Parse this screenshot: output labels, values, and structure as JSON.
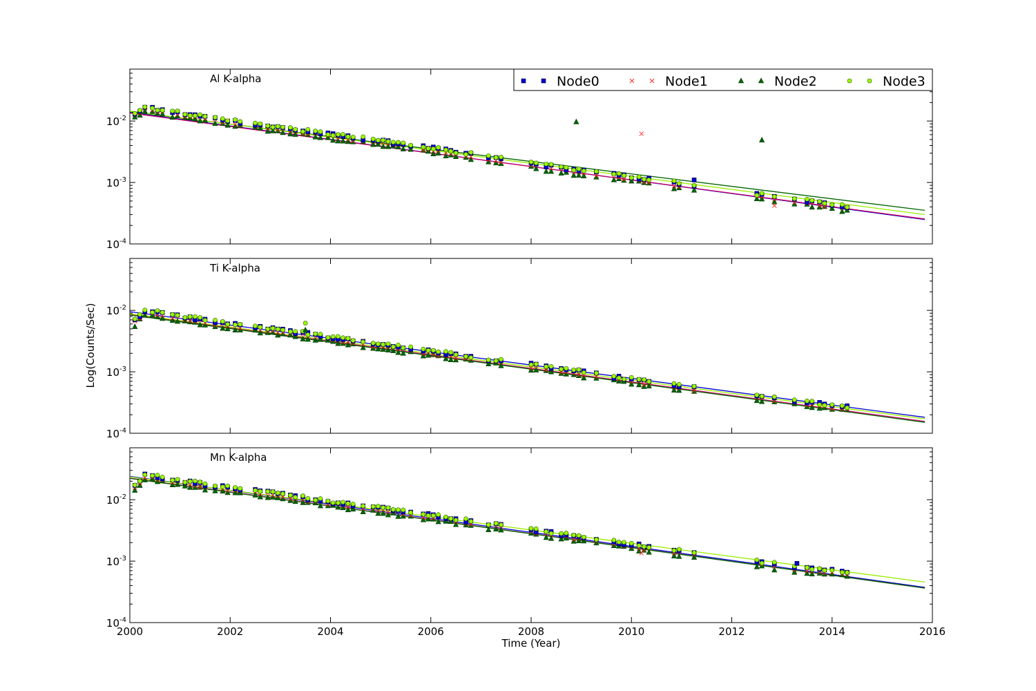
{
  "chart_data": {
    "type": "scatter",
    "xlabel": "Time (Year)",
    "ylabel": "Log(Counts/Sec)",
    "x_ticks": [
      2000,
      2002,
      2004,
      2006,
      2008,
      2010,
      2012,
      2014,
      2016
    ],
    "x_tick_labels": [
      "2000",
      "2002",
      "2004",
      "2006",
      "2008",
      "2010",
      "2012",
      "2014",
      "2016"
    ],
    "xlim": [
      2000,
      2016
    ],
    "y_scale": "log",
    "ylim": [
      0.0001,
      0.07
    ],
    "y_ticks": [
      0.0001,
      0.001,
      0.01
    ],
    "y_tick_base": "10",
    "y_tick_exponents": [
      "-4",
      "-3",
      "-2"
    ],
    "grid": false,
    "legend_placement": "top-right",
    "series": [
      {
        "name": "Node0",
        "marker": "square",
        "color": "#0000cc",
        "edge": "#000044",
        "fit_color": "#0000cc"
      },
      {
        "name": "Node1",
        "marker": "x",
        "color": "#ff2222",
        "edge": "#ff2222",
        "fit_color": "#cc0066"
      },
      {
        "name": "Node2",
        "marker": "triangle",
        "color": "#006600",
        "edge": "#003300",
        "fit_color": "#006600"
      },
      {
        "name": "Node3",
        "marker": "circle",
        "color": "#99ff00",
        "edge": "#335500",
        "fit_color": "#99ee00"
      }
    ],
    "panels": [
      {
        "title": "Al K-alpha",
        "fits": [
          {
            "y2000": 0.0138,
            "y2016": 0.00024
          },
          {
            "y2000": 0.0135,
            "y2016": 0.000245
          },
          {
            "y2000": 0.0142,
            "y2016": 0.00034
          },
          {
            "y2000": 0.0145,
            "y2016": 0.00029
          }
        ],
        "knots": [
          [
            2000.1,
            0.0125
          ],
          [
            2000.3,
            0.0155
          ],
          [
            2001,
            0.0125
          ],
          [
            2002,
            0.0095
          ],
          [
            2003,
            0.0073
          ],
          [
            2004,
            0.0056
          ],
          [
            2005,
            0.0044
          ],
          [
            2006,
            0.0034
          ],
          [
            2007,
            0.0025
          ],
          [
            2008,
            0.0019
          ],
          [
            2009,
            0.00145
          ],
          [
            2010,
            0.00115
          ],
          [
            2011,
            0.00088
          ],
          [
            2012,
            0.00068
          ],
          [
            2013,
            0.00052
          ],
          [
            2014.3,
            0.00038
          ]
        ],
        "outliers": [
          {
            "series": 2,
            "x": 2008.9,
            "y": 0.0097
          },
          {
            "series": 1,
            "x": 2010.2,
            "y": 0.0062
          },
          {
            "series": 2,
            "x": 2012.6,
            "y": 0.0049
          },
          {
            "series": 0,
            "x": 2011.25,
            "y": 0.0011
          },
          {
            "series": 1,
            "x": 2012.85,
            "y": 0.00042
          }
        ]
      },
      {
        "title": "Ti K-alpha",
        "fits": [
          {
            "y2000": 0.0095,
            "y2016": 0.000175
          },
          {
            "y2000": 0.0086,
            "y2016": 0.00015
          },
          {
            "y2000": 0.0084,
            "y2016": 0.000145
          },
          {
            "y2000": 0.0088,
            "y2016": 0.000165
          }
        ],
        "knots": [
          [
            2000.1,
            0.0063
          ],
          [
            2000.3,
            0.0092
          ],
          [
            2001,
            0.0075
          ],
          [
            2002,
            0.0056
          ],
          [
            2003,
            0.0045
          ],
          [
            2004,
            0.0034
          ],
          [
            2005,
            0.0026
          ],
          [
            2006,
            0.002
          ],
          [
            2007,
            0.00155
          ],
          [
            2008,
            0.00122
          ],
          [
            2009,
            0.00093
          ],
          [
            2010,
            0.0007
          ],
          [
            2011,
            0.00054
          ],
          [
            2012,
            0.00042
          ],
          [
            2013,
            0.00033
          ],
          [
            2014.3,
            0.00025
          ]
        ],
        "outliers": [
          {
            "series": 3,
            "x": 2003.5,
            "y": 0.0062
          },
          {
            "series": 2,
            "x": 2003.5,
            "y": 0.0048
          }
        ]
      },
      {
        "title": "Mn K-alpha",
        "fits": [
          {
            "y2000": 0.024,
            "y2016": 0.00036
          },
          {
            "y2000": 0.0225,
            "y2016": 0.00035
          },
          {
            "y2000": 0.0222,
            "y2016": 0.00035
          },
          {
            "y2000": 0.0235,
            "y2016": 0.00044
          }
        ],
        "knots": [
          [
            2000.1,
            0.0155
          ],
          [
            2000.3,
            0.024
          ],
          [
            2001,
            0.019
          ],
          [
            2002,
            0.0145
          ],
          [
            2003,
            0.0115
          ],
          [
            2004,
            0.0085
          ],
          [
            2005,
            0.0068
          ],
          [
            2006,
            0.0052
          ],
          [
            2007,
            0.0039
          ],
          [
            2008,
            0.003
          ],
          [
            2009,
            0.0023
          ],
          [
            2010,
            0.00175
          ],
          [
            2011,
            0.00135
          ],
          [
            2012,
            0.00105
          ],
          [
            2013,
            0.0008
          ],
          [
            2014.3,
            0.00062
          ]
        ],
        "outliers": [
          {
            "series": 0,
            "x": 2013.3,
            "y": 0.00092
          },
          {
            "series": 1,
            "x": 2010.2,
            "y": 0.00135
          }
        ]
      }
    ],
    "observation_years": [
      2000.1,
      2000.2,
      2000.3,
      2000.45,
      2000.55,
      2000.65,
      2000.85,
      2000.95,
      2001.1,
      2001.2,
      2001.3,
      2001.4,
      2001.5,
      2001.7,
      2001.85,
      2001.95,
      2002.1,
      2002.2,
      2002.5,
      2002.6,
      2002.75,
      2002.85,
      2002.95,
      2003.05,
      2003.2,
      2003.3,
      2003.45,
      2003.55,
      2003.7,
      2003.8,
      2003.95,
      2004.05,
      2004.15,
      2004.25,
      2004.35,
      2004.45,
      2004.65,
      2004.85,
      2004.95,
      2005.05,
      2005.15,
      2005.25,
      2005.35,
      2005.45,
      2005.6,
      2005.85,
      2005.95,
      2006.05,
      2006.15,
      2006.3,
      2006.4,
      2006.5,
      2006.7,
      2006.8,
      2007.15,
      2007.3,
      2007.4,
      2008.0,
      2008.1,
      2008.3,
      2008.4,
      2008.6,
      2008.7,
      2008.85,
      2008.95,
      2009.05,
      2009.3,
      2009.65,
      2009.75,
      2009.85,
      2010.0,
      2010.15,
      2010.25,
      2010.35,
      2010.85,
      2010.95,
      2011.25,
      2012.5,
      2012.6,
      2012.85,
      2013.25,
      2013.5,
      2013.6,
      2013.75,
      2013.85,
      2014.0,
      2014.2,
      2014.3
    ]
  }
}
